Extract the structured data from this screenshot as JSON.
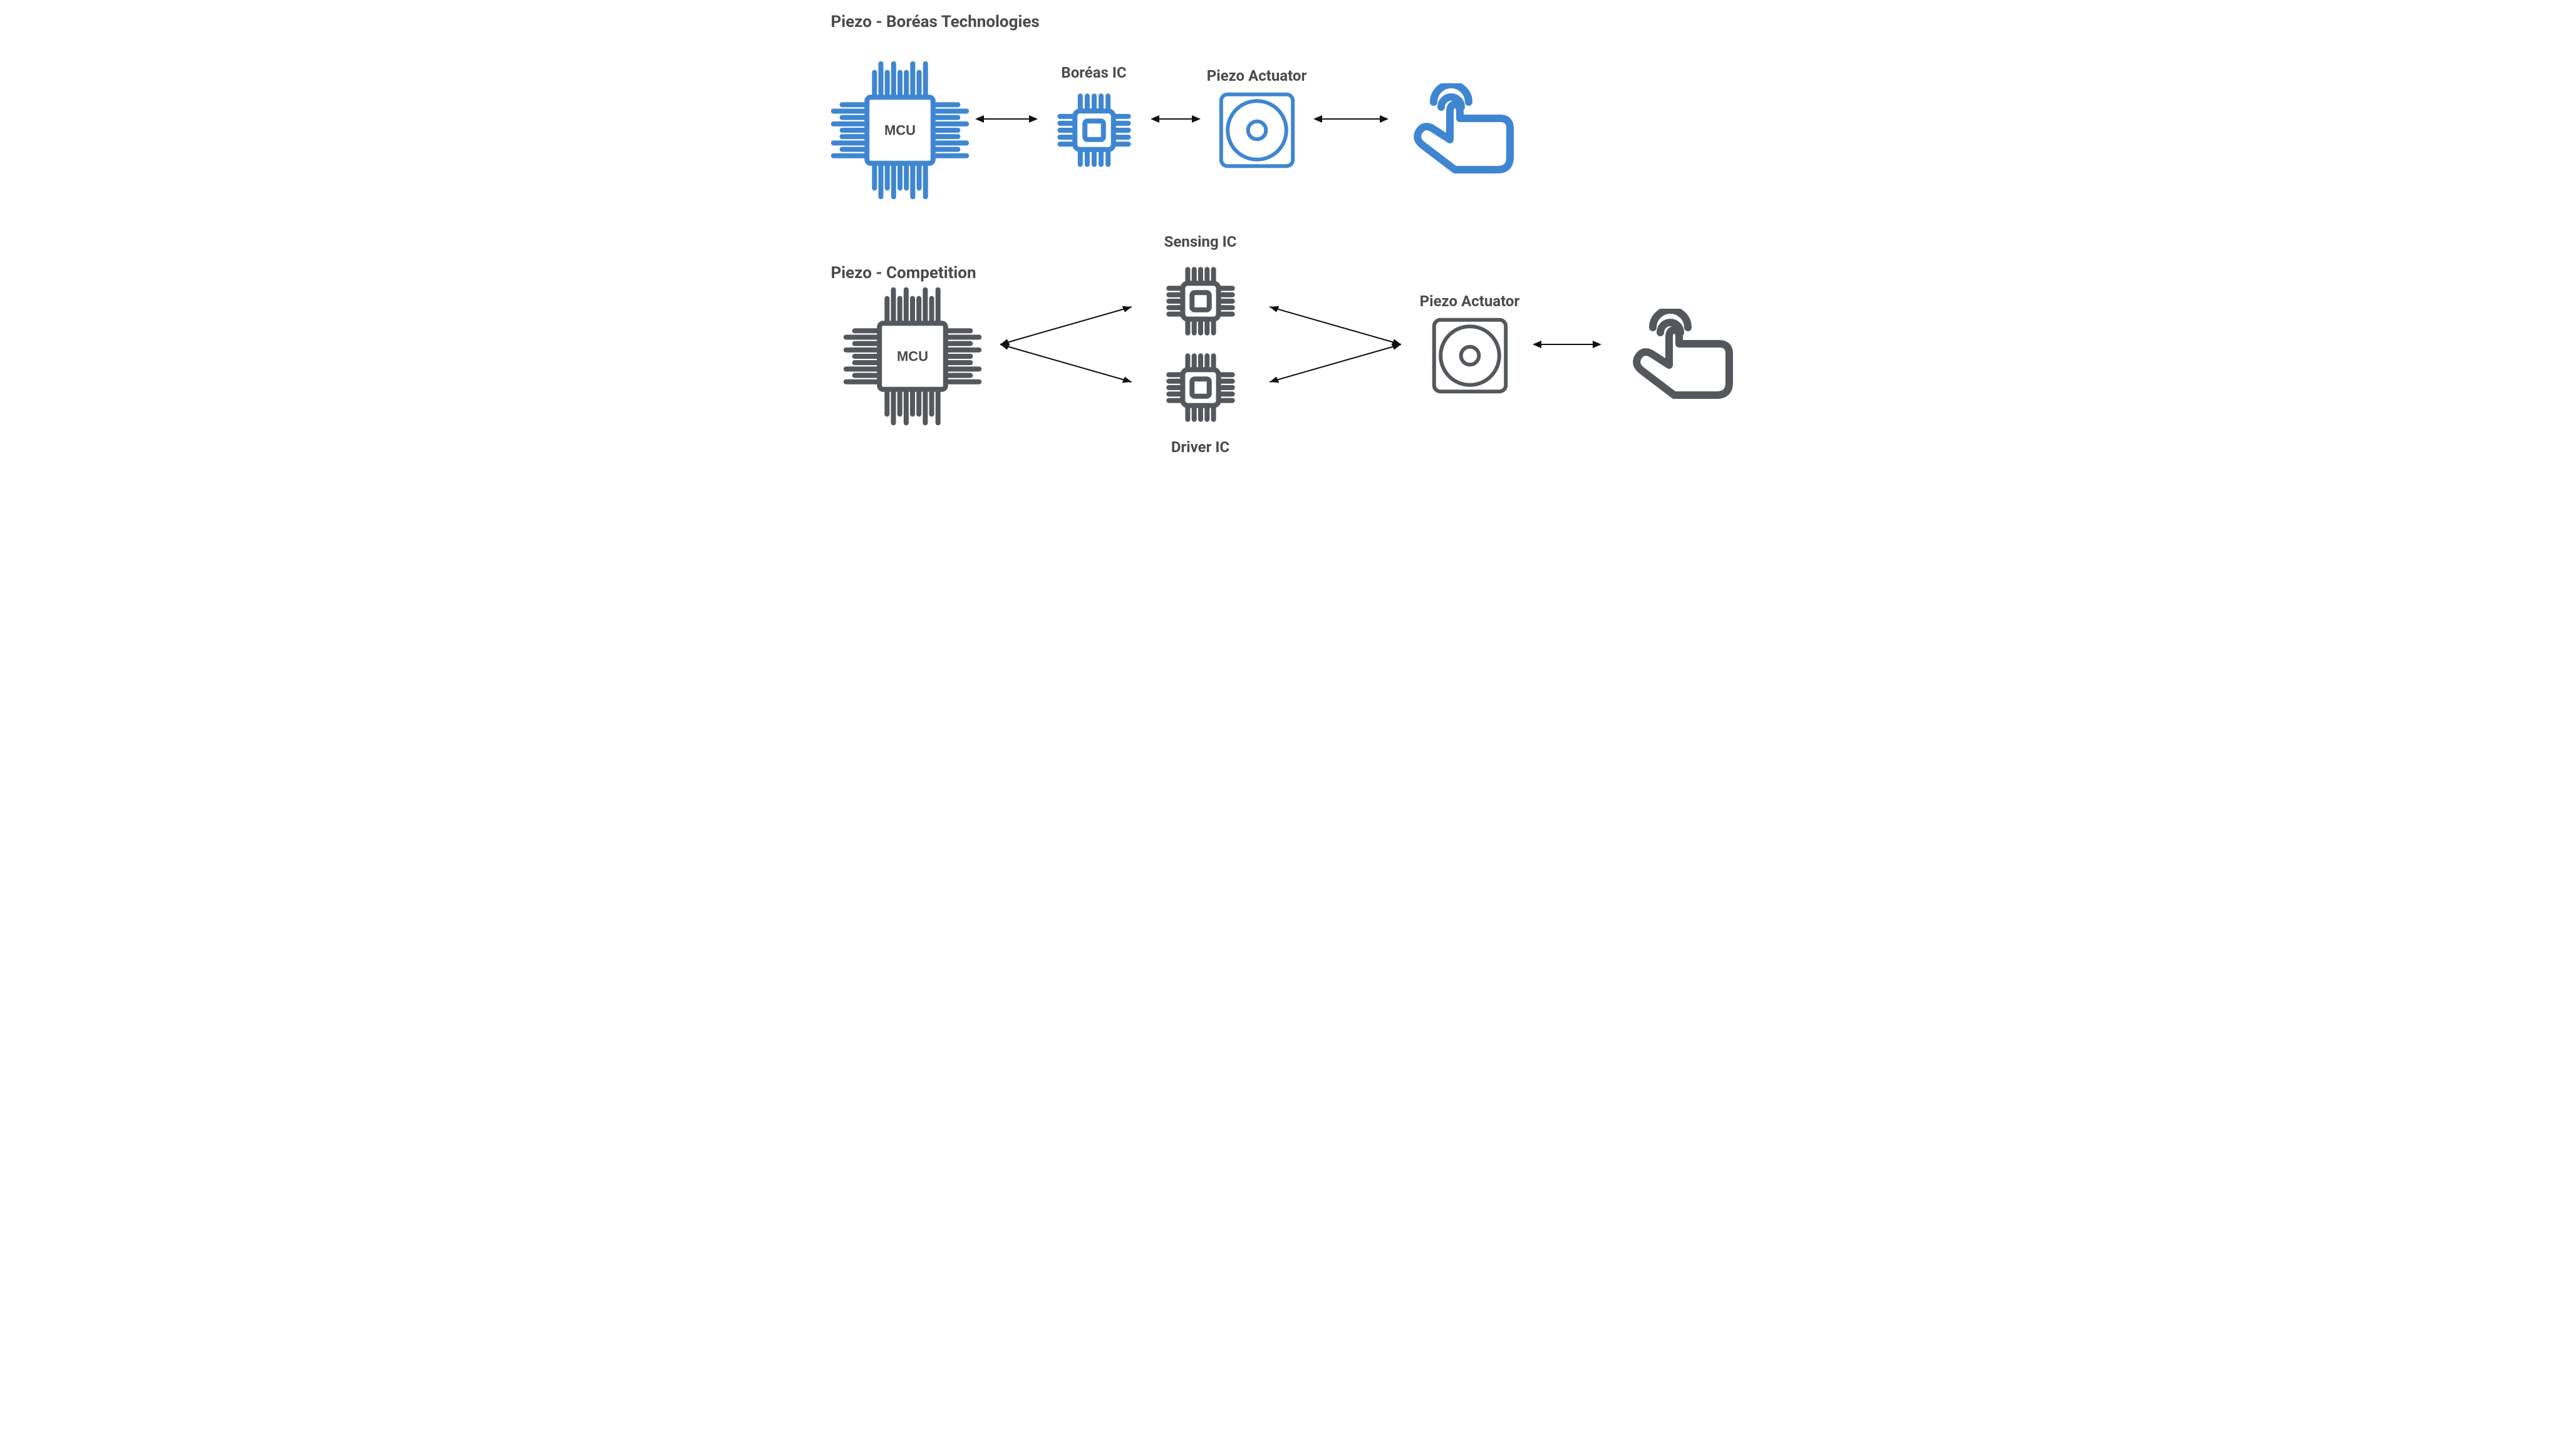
{
  "colors": {
    "accent": "#3f86d2",
    "gray": "#54585c",
    "text": "#484a4d",
    "black": "#111111",
    "bg": "#ffffff"
  },
  "stroke": {
    "thick": 8,
    "medium": 6,
    "thin": 2
  },
  "fontsize": {
    "title": 26,
    "label": 24,
    "mcu": 22
  },
  "top": {
    "title": "Piezo - Boréas Technologies",
    "nodes": [
      {
        "id": "mcu",
        "label": "MCU",
        "icon": "chip-large",
        "color": "accent",
        "size": 220
      },
      {
        "id": "ic",
        "label": "Boréas IC",
        "icon": "chip-small",
        "color": "accent",
        "size": 140
      },
      {
        "id": "piezo",
        "label": "Piezo Actuator",
        "icon": "actuator",
        "color": "accent",
        "size": 130
      },
      {
        "id": "touch",
        "label": "",
        "icon": "touch",
        "color": "accent",
        "size": 200
      }
    ],
    "arrow_gaps": [
      100,
      80,
      120
    ]
  },
  "bottom": {
    "title": "Piezo - Competition",
    "mcu": {
      "label": "MCU",
      "icon": "chip-large",
      "color": "gray",
      "size": 220
    },
    "sensing": {
      "label": "Sensing IC",
      "icon": "chip-small",
      "color": "gray",
      "size": 130
    },
    "driver": {
      "label": "Driver IC",
      "icon": "chip-small",
      "color": "gray",
      "size": 130
    },
    "piezo": {
      "label": "Piezo Actuator",
      "icon": "actuator",
      "color": "gray",
      "size": 130
    },
    "touch": {
      "label": "",
      "icon": "touch",
      "color": "gray",
      "size": 200
    },
    "arrow_gap_piezo_touch": 110
  }
}
